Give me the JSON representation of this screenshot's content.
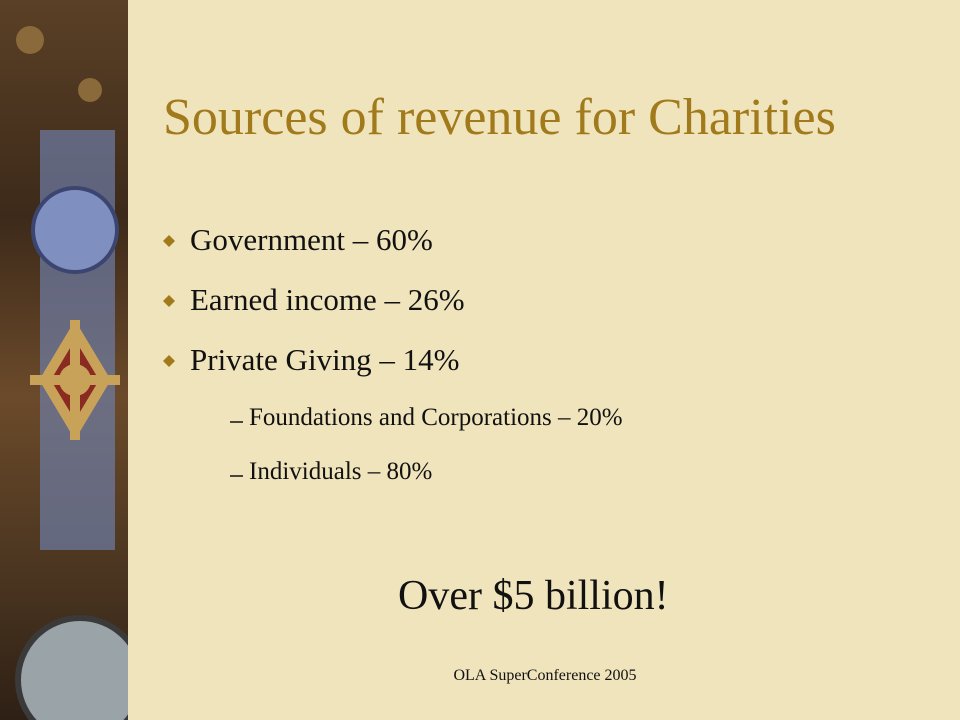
{
  "slide": {
    "title": "Sources of revenue for Charities",
    "bullets": [
      {
        "text": "Government – 60%"
      },
      {
        "text": "Earned income – 26%"
      },
      {
        "text": "Private Giving – 14%",
        "sub_bullets": [
          "Foundations and Corporations – 20%",
          "Individuals – 80%"
        ]
      }
    ],
    "callout": "Over $5 billion!",
    "footer": "OLA SuperConference 2005"
  }
}
